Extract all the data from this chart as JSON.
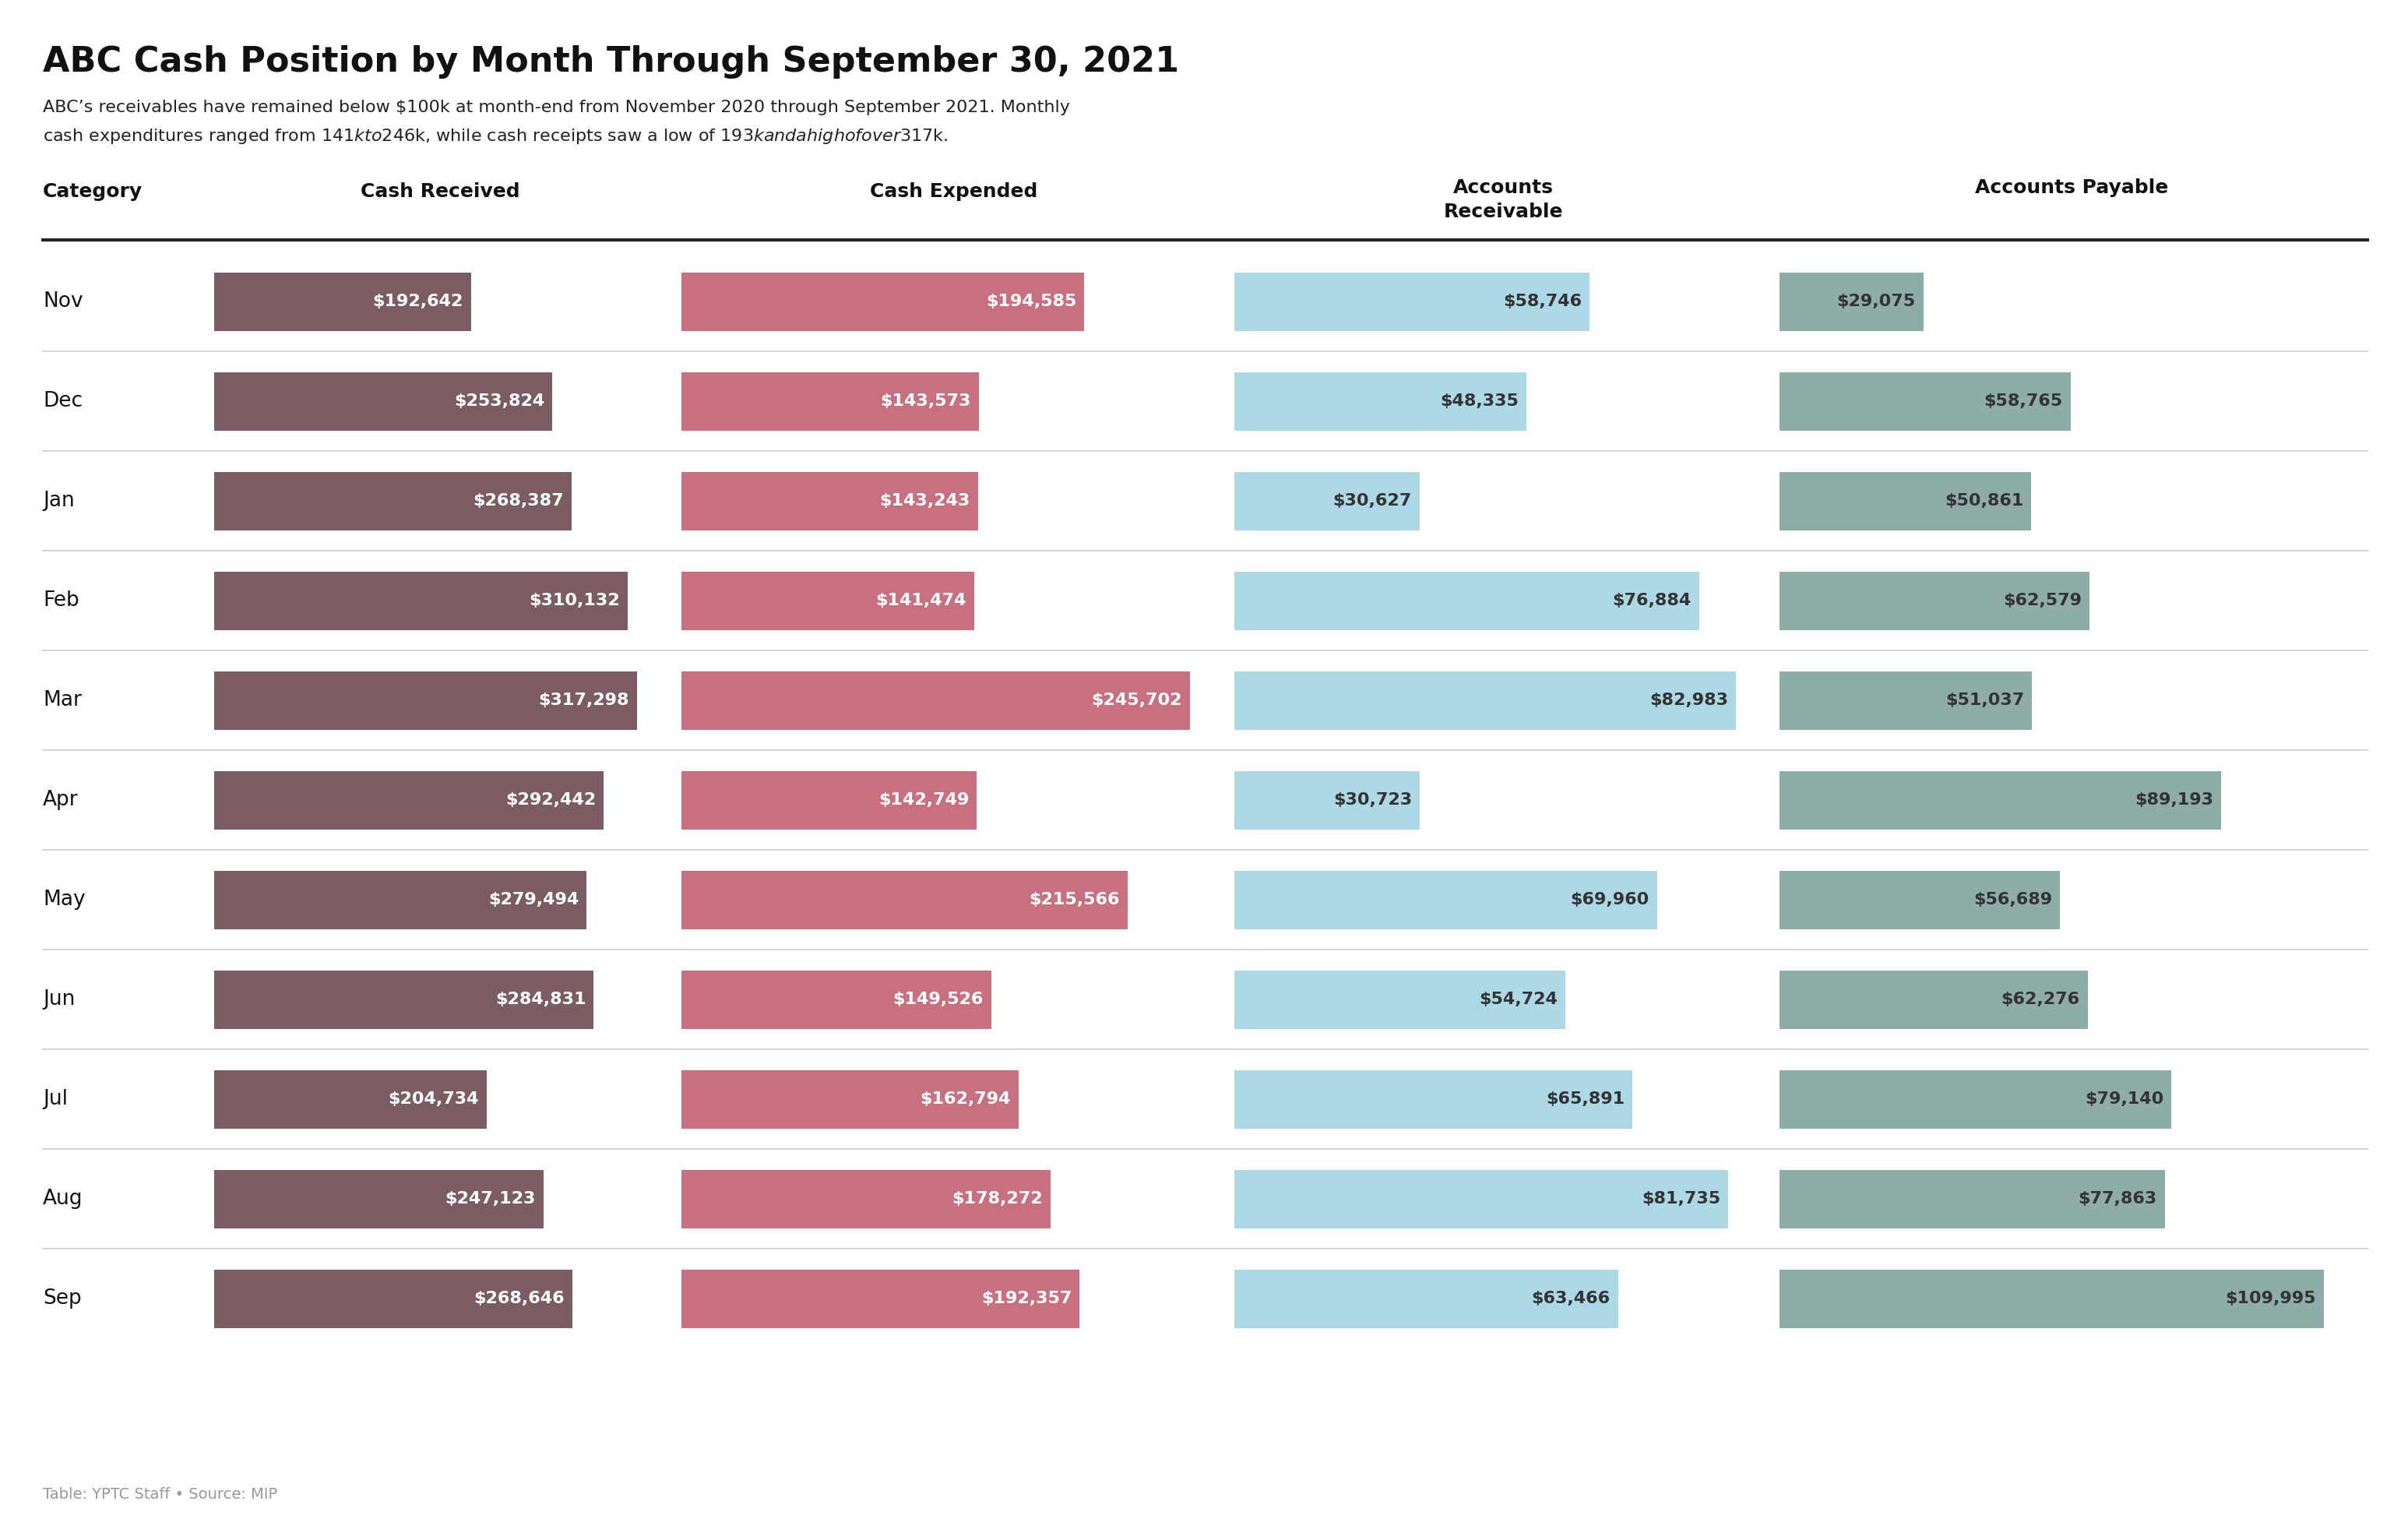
{
  "title": "ABC Cash Position by Month Through September 30, 2021",
  "subtitle_line1": "ABC’s receivables have remained below $100k at month-end from November 2020 through September 2021. Monthly",
  "subtitle_line2": "cash expenditures ranged from $141k to $246k, while cash receipts saw a low of $193k and a high of over $317k.",
  "footer": "Table: YPTC Staff • Source: MIP",
  "col_headers": [
    "Category",
    "Cash Received",
    "Cash Expended",
    "Accounts\nReceivable",
    "Accounts Payable"
  ],
  "months": [
    "Nov",
    "Dec",
    "Jan",
    "Feb",
    "Mar",
    "Apr",
    "May",
    "Jun",
    "Jul",
    "Aug",
    "Sep"
  ],
  "cash_received": [
    192642,
    253824,
    268387,
    310132,
    317298,
    292442,
    279494,
    284831,
    204734,
    247123,
    268646
  ],
  "cash_expended": [
    194585,
    143573,
    143243,
    141474,
    245702,
    142749,
    215566,
    149526,
    162794,
    178272,
    192357
  ],
  "accounts_receivable": [
    58746,
    48335,
    30627,
    76884,
    82983,
    30723,
    69960,
    54724,
    65891,
    81735,
    63466
  ],
  "accounts_payable": [
    29075,
    58765,
    50861,
    62579,
    51037,
    89193,
    56689,
    62276,
    79140,
    77863,
    109995
  ],
  "color_received": "#7a5c62",
  "color_expended": "#c97080",
  "color_receivable": "#add8e6",
  "color_payable": "#8fada8",
  "max_received": 317298,
  "max_expended": 245702,
  "max_receivable": 82983,
  "max_payable": 109995,
  "bg_color": "#ffffff",
  "header_line_color": "#222222",
  "row_line_color": "#cccccc",
  "title_fontsize": 32,
  "subtitle_fontsize": 16,
  "header_fontsize": 18,
  "month_fontsize": 19,
  "bar_label_fontsize": 16,
  "footer_fontsize": 14
}
